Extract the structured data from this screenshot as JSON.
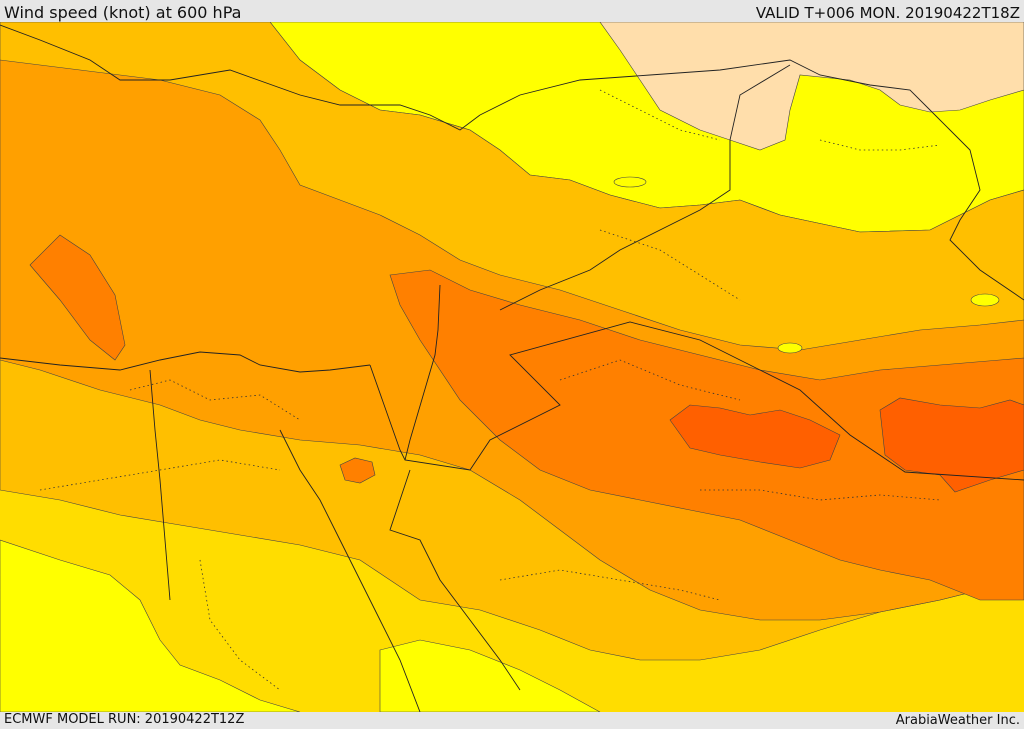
{
  "header": {
    "title": "Wind speed (knot) at 600 hPa",
    "valid_time": "VALID T+006 MON. 20190422T18Z"
  },
  "footer": {
    "model_run": "ECMWF MODEL RUN: 20190422T12Z",
    "credit": "ArabiaWeather Inc."
  },
  "colors": {
    "band_peach": "#ffdeab",
    "band_yellow": "#ffff00",
    "band_gold": "#ffdd00",
    "band_amber": "#ffbf00",
    "band_orange_light": "#ffa000",
    "band_orange": "#ff8000",
    "band_orange_dark": "#ff6000",
    "border_line": "#222222"
  }
}
